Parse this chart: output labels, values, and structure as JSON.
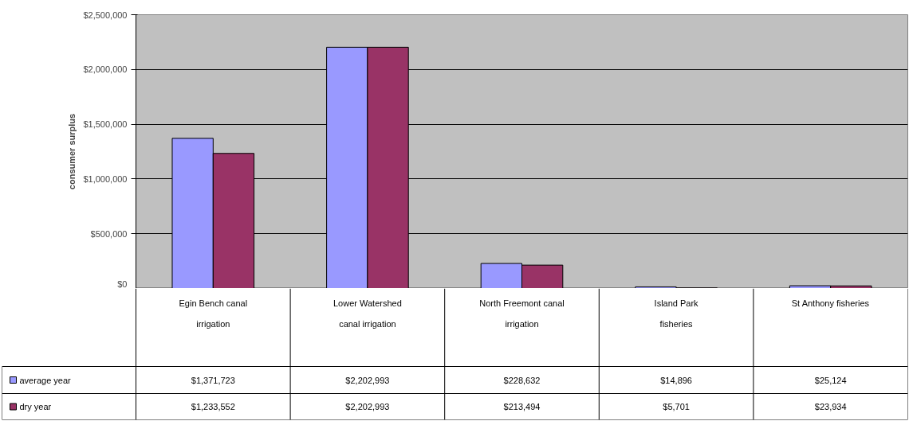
{
  "chart_data": {
    "type": "bar",
    "ylabel": "consumer surplus",
    "categories": [
      "Egin Bench canal irrigation",
      "Lower Watershed canal irrigation",
      "North Freemont canal irrigation",
      "Island Park fisheries",
      "St Anthony fisheries"
    ],
    "series": [
      {
        "name": "average year",
        "color": "#9999ff",
        "values": [
          1371723,
          2202993,
          228632,
          14896,
          25124
        ],
        "value_labels": [
          "$1,371,723",
          "$2,202,993",
          "$228,632",
          "$14,896",
          "$25,124"
        ]
      },
      {
        "name": "dry year",
        "color": "#993366",
        "values": [
          1233552,
          2202993,
          213494,
          5701,
          23934
        ],
        "value_labels": [
          "$1,233,552",
          "$2,202,993",
          "$213,494",
          "$5,701",
          "$23,934"
        ]
      }
    ],
    "ylim": [
      0,
      2500000
    ],
    "yticks": [
      {
        "value": 0,
        "label": "$0"
      },
      {
        "value": 500000,
        "label": "$500,000"
      },
      {
        "value": 1000000,
        "label": "$1,000,000"
      },
      {
        "value": 1500000,
        "label": "$1,500,000"
      },
      {
        "value": 2000000,
        "label": "$2,000,000"
      },
      {
        "value": 2500000,
        "label": "$2,500,000"
      }
    ],
    "grid": "y",
    "legend": "bottom left",
    "tick_labels": "y"
  }
}
